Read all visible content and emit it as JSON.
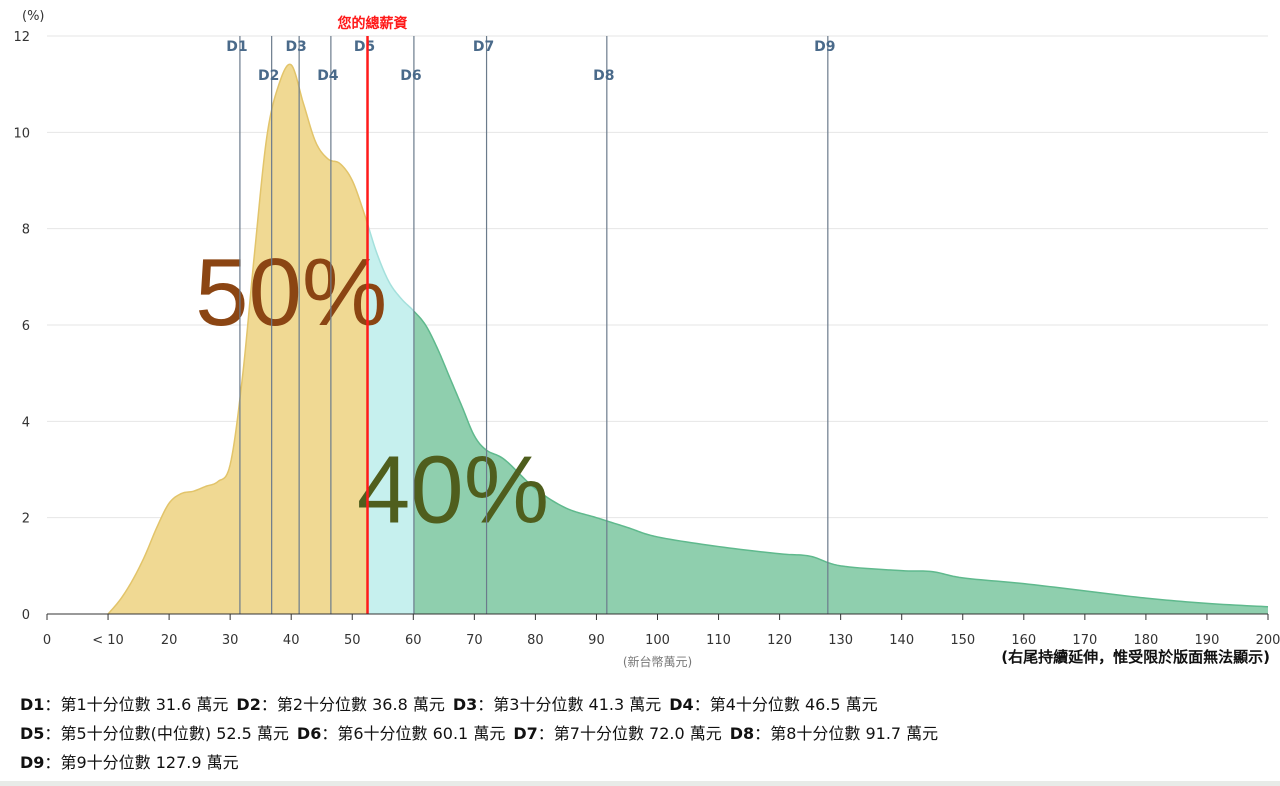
{
  "chart_data": {
    "type": "area",
    "y_unit_label": "(%)",
    "ylim": [
      0,
      12
    ],
    "y_ticks": [
      0,
      2,
      4,
      6,
      8,
      10,
      12
    ],
    "xlim": [
      0,
      200
    ],
    "x_ticks": [
      {
        "value": 0,
        "label": "0"
      },
      {
        "value": 10,
        "label": "< 10"
      },
      {
        "value": 20,
        "label": "20"
      },
      {
        "value": 30,
        "label": "30"
      },
      {
        "value": 40,
        "label": "40"
      },
      {
        "value": 50,
        "label": "50"
      },
      {
        "value": 60,
        "label": "60"
      },
      {
        "value": 70,
        "label": "70"
      },
      {
        "value": 80,
        "label": "80"
      },
      {
        "value": 90,
        "label": "90"
      },
      {
        "value": 100,
        "label": "100"
      },
      {
        "value": 110,
        "label": "110"
      },
      {
        "value": 120,
        "label": "120"
      },
      {
        "value": 130,
        "label": "130"
      },
      {
        "value": 140,
        "label": "140"
      },
      {
        "value": 150,
        "label": "150"
      },
      {
        "value": 160,
        "label": "160"
      },
      {
        "value": 170,
        "label": "170"
      },
      {
        "value": 180,
        "label": "180"
      },
      {
        "value": 190,
        "label": "190"
      },
      {
        "value": 200,
        "label": "200"
      }
    ],
    "xlabel": "(新台幣萬元)",
    "x_note": "(右尾持續延伸，惟受限於版面無法顯示)",
    "grid": true,
    "x": [
      10,
      12,
      14,
      16,
      18,
      20,
      22,
      24,
      26,
      28,
      30,
      32,
      34,
      36,
      38,
      40,
      42,
      44,
      46,
      48,
      50,
      52,
      54,
      56,
      58,
      60,
      62,
      64,
      66,
      68,
      70,
      72,
      75,
      80,
      85,
      90,
      95,
      100,
      110,
      120,
      125,
      130,
      140,
      145,
      150,
      160,
      170,
      180,
      190,
      200
    ],
    "y": [
      0.0,
      0.3,
      0.7,
      1.2,
      1.8,
      2.3,
      2.5,
      2.55,
      2.65,
      2.75,
      3.1,
      4.9,
      7.5,
      9.9,
      11.0,
      11.4,
      10.6,
      9.8,
      9.45,
      9.35,
      9.0,
      8.3,
      7.5,
      6.9,
      6.55,
      6.3,
      6.0,
      5.5,
      4.9,
      4.3,
      3.7,
      3.4,
      3.2,
      2.6,
      2.2,
      2.0,
      1.8,
      1.6,
      1.4,
      1.25,
      1.2,
      1.0,
      0.9,
      0.88,
      0.75,
      0.63,
      0.48,
      0.33,
      0.22,
      0.15
    ],
    "regions": [
      {
        "from": 0,
        "to": 52.5,
        "color": "#f0d993",
        "stroke": "#e2c46a"
      },
      {
        "from": 52.5,
        "to": 60.1,
        "color": "#c6f0ee",
        "stroke": "#a4e0dc"
      },
      {
        "from": 60.1,
        "to": 200,
        "color": "#8fcfae",
        "stroke": "#5fb98d"
      }
    ],
    "big_labels": [
      {
        "text": "50%",
        "color": "#8b4513",
        "anchor_x": 40,
        "anchor_y": 6.0
      },
      {
        "text": "40%",
        "color": "#4f5e1d",
        "anchor_x": 66.5,
        "anchor_y": 1.9
      }
    ],
    "deciles": [
      {
        "key": "D1",
        "value": 31.6,
        "desc": "第1十分位數 31.6 萬元"
      },
      {
        "key": "D2",
        "value": 36.8,
        "desc": "第2十分位數 36.8 萬元"
      },
      {
        "key": "D3",
        "value": 41.3,
        "desc": "第3十分位數 41.3 萬元"
      },
      {
        "key": "D4",
        "value": 46.5,
        "desc": "第4十分位數 46.5 萬元"
      },
      {
        "key": "D5",
        "value": 52.5,
        "desc": "第5十分位數(中位數) 52.5 萬元"
      },
      {
        "key": "D6",
        "value": 60.1,
        "desc": "第6十分位數 60.1 萬元"
      },
      {
        "key": "D7",
        "value": 72.0,
        "desc": "第7十分位數 72.0 萬元"
      },
      {
        "key": "D8",
        "value": 91.7,
        "desc": "第8十分位數 91.7 萬元"
      },
      {
        "key": "D9",
        "value": 127.9,
        "desc": "第9十分位數 127.9 萬元"
      }
    ],
    "decile_line_color": "#6b7b8c",
    "marker": {
      "label": "您的總薪資",
      "value": 52.5,
      "color": "#ff1a1a"
    },
    "legend_separator": "："
  }
}
